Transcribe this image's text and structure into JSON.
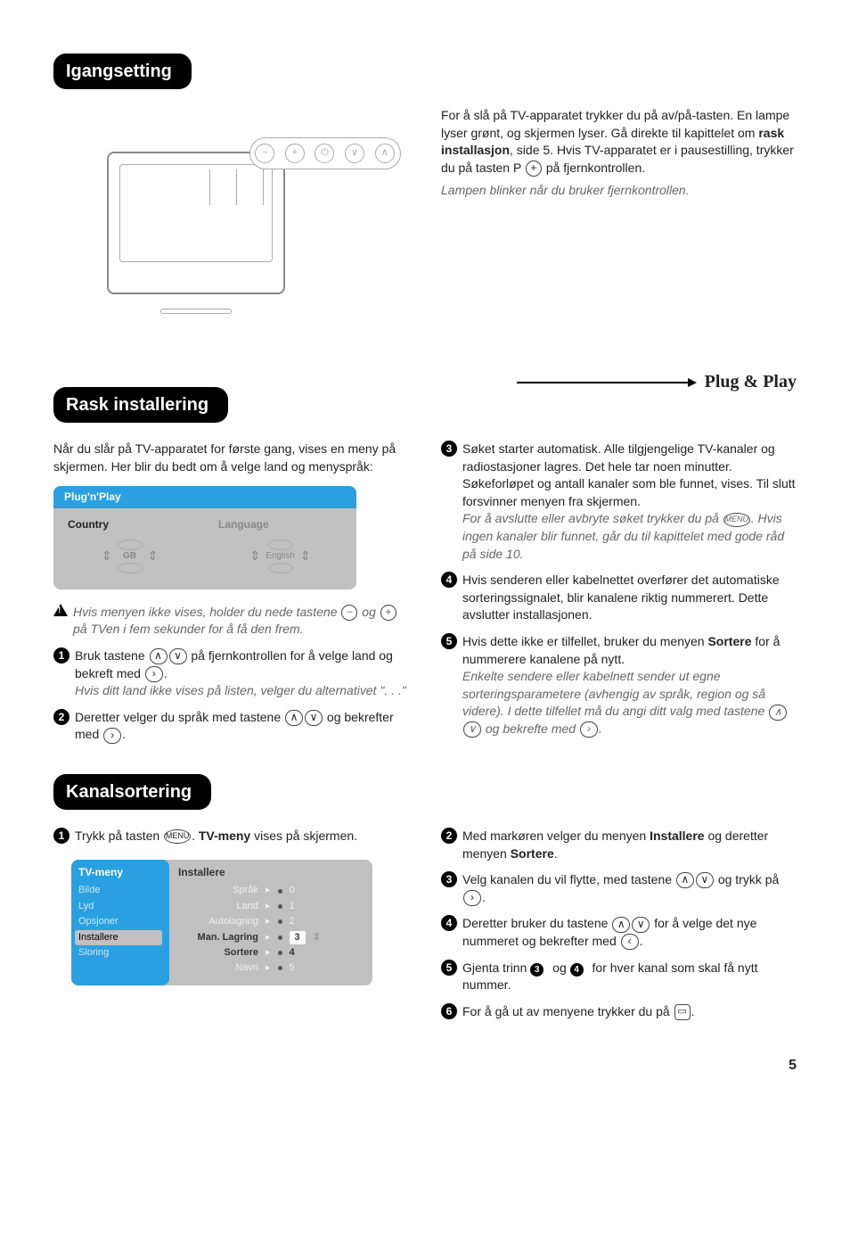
{
  "sections": {
    "s1_title": "Igangsetting",
    "s2_title": "Rask installering",
    "s3_title": "Kanalsortering"
  },
  "plugplay_label": "Plug & Play",
  "igangsetting": {
    "para1_a": "For å slå på TV-apparatet trykker du på av/på-tasten. En lampe lyser grønt, og skjermen lyser. Gå direkte til kapittelet om ",
    "para1_b": "rask installasjon",
    "para1_c": ", side 5. Hvis TV-apparatet er i pausestilling, trykker du på tasten P ",
    "para1_d": " på fjernkontrollen.",
    "para2": "Lampen blinker når du bruker fjernkontrollen.",
    "buttons": [
      "−",
      "+",
      "⏻",
      "∨",
      "∧"
    ]
  },
  "rask": {
    "intro": "Når du slår på TV-apparatet for første gang, vises en meny på skjermen. Her blir du bedt om å velge land og menyspråk:",
    "pnp_title": "Plug'n'Play",
    "pnp_country": "Country",
    "pnp_language": "Language",
    "pnp_gb": "GB",
    "pnp_english": "English",
    "warn_a": "Hvis menyen ikke vises, holder du nede tastene ",
    "warn_b": " og ",
    "warn_c": " på TVen i fem sekunder for å få den frem.",
    "step1_a": "Bruk tastene ",
    "step1_b": " på fjernkontrollen for å velge land og bekreft med ",
    "step1_c": ".",
    "step1_note": "Hvis ditt land ikke vises på listen, velger du alternativet \". . .\"",
    "step2_a": "Deretter velger du språk med tastene ",
    "step2_b": " og bekrefter med ",
    "step2_c": ".",
    "step3_a": "Søket starter automatisk. Alle tilgjengelige TV-kanaler og radiostasjoner lagres. Det hele tar noen minutter. Søkeforløpet og antall kanaler som ble funnet, vises.  Til slutt forsvinner menyen fra skjermen.",
    "step3_note_a": "For å avslutte eller avbryte søket trykker du på ",
    "step3_note_b": ". Hvis ingen kanaler blir funnet, går du til kapittelet med gode råd på side 10.",
    "step4": "Hvis senderen eller kabelnettet overfører det automatiske sorteringssignalet, blir kanalene riktig nummerert. Dette avslutter installasjonen.",
    "step5_a": "Hvis dette ikke er tilfellet, bruker du menyen ",
    "step5_b": "Sortere",
    "step5_c": " for å nummerere kanalene på nytt.",
    "step5_note_a": "Enkelte sendere eller kabelnett sender ut egne sorteringsparametere (avhengig av språk, region og så videre). I dette tilfellet må du angi ditt valg med tastene ",
    "step5_note_b": " og bekrefte med ",
    "step5_note_c": "."
  },
  "kanal": {
    "step1_a": "Trykk på tasten ",
    "step1_b": ". ",
    "step1_c": "TV-meny",
    "step1_d": " vises på skjermen.",
    "tvm_title": "TV-meny",
    "tvm_left_items": [
      "Bilde",
      "Lyd",
      "Opsjoner",
      "Installere",
      "Sloring"
    ],
    "tvm_left_sel_idx": 3,
    "tvm_right_title": "Installere",
    "tvm_rows": [
      {
        "lbl": "Språk",
        "val": "0",
        "dark": false
      },
      {
        "lbl": "Land",
        "val": "1",
        "dark": false
      },
      {
        "lbl": "Autolagring",
        "val": "2",
        "dark": false
      },
      {
        "lbl": "Man. Lagring",
        "val": "3",
        "dark": true,
        "boxed": true
      },
      {
        "lbl": "Sortere",
        "val": "4",
        "dark": true
      },
      {
        "lbl": "Navn",
        "val": "5",
        "dark": false
      }
    ],
    "step2_a": "Med markøren velger du menyen ",
    "step2_b": "Installere",
    "step2_c": " og deretter menyen ",
    "step2_d": "Sortere",
    "step2_e": ".",
    "step3_a": "Velg kanalen du vil flytte, med tastene ",
    "step3_b": " og trykk på ",
    "step3_c": ".",
    "step4_a": "Deretter bruker du tastene ",
    "step4_b": " for å velge det nye nummeret og bekrefter med ",
    "step4_c": ".",
    "step5_a": "Gjenta trinn ",
    "step5_b": " og ",
    "step5_c": " for hver kanal som skal få nytt nummer.",
    "step6_a": "For å gå ut av menyene trykker du på ",
    "step6_b": "."
  },
  "menu_label": "MENU",
  "page_num": "5"
}
